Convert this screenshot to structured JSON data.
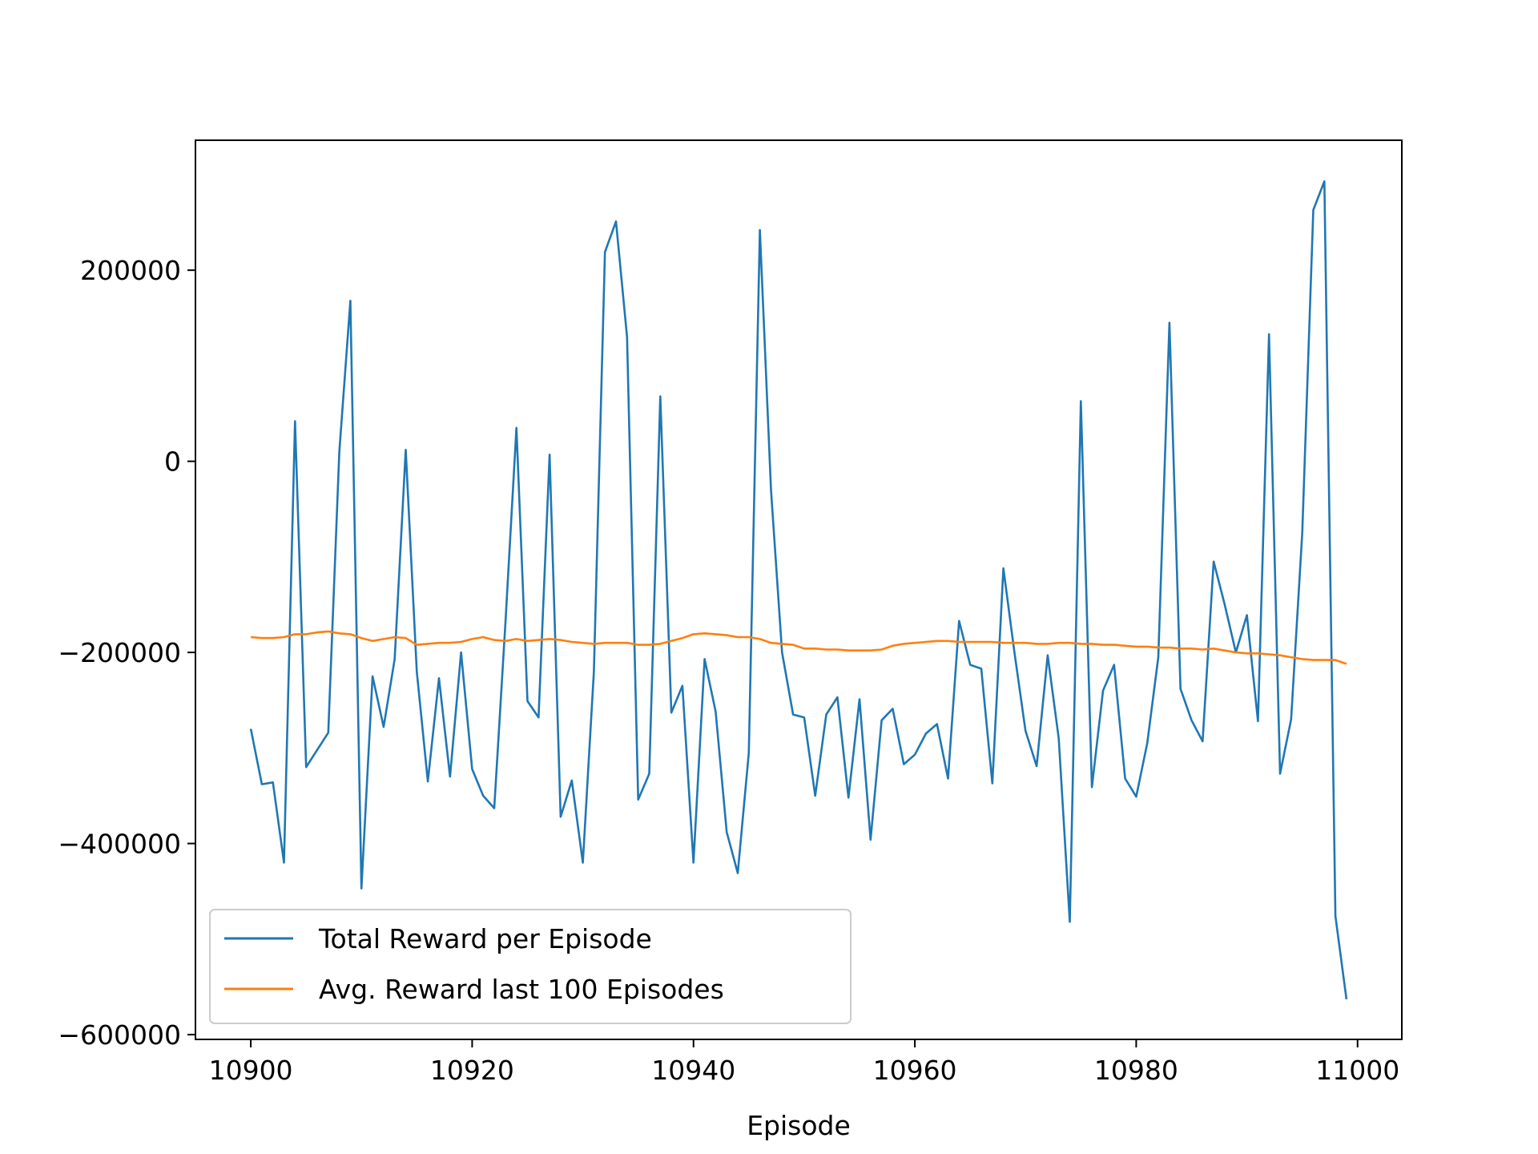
{
  "chart_data": {
    "type": "line",
    "title": "",
    "xlabel": "Episode",
    "ylabel": "",
    "xlim": [
      10895,
      11004
    ],
    "ylim": [
      -605000,
      336000
    ],
    "grid": false,
    "legend_position": "lower-left",
    "xticks": [
      10900,
      10920,
      10940,
      10960,
      10980,
      11000
    ],
    "yticks": [
      -600000,
      -400000,
      -200000,
      0,
      200000
    ],
    "x_start": 10900,
    "series": [
      {
        "name": "Total Reward per Episode",
        "color": "#1f77b4",
        "values": [
          -280000,
          -338000,
          -336000,
          -420000,
          42000,
          -320000,
          -302000,
          -284000,
          10000,
          168000,
          -447000,
          -225000,
          -278000,
          -207000,
          12000,
          -220000,
          -335000,
          -227000,
          -330000,
          -200000,
          -322000,
          -350000,
          -363000,
          -170000,
          35000,
          -251000,
          -268000,
          7000,
          -372000,
          -334000,
          -420000,
          -220000,
          219000,
          251000,
          130000,
          -354000,
          -327000,
          68000,
          -263000,
          -235000,
          -420000,
          -207000,
          -262000,
          -388000,
          -431000,
          -305000,
          242000,
          -30000,
          -200000,
          -265000,
          -268000,
          -350000,
          -265000,
          -247000,
          -352000,
          -249000,
          -396000,
          -271000,
          -259000,
          -317000,
          -307000,
          -285000,
          -275000,
          -332000,
          -167000,
          -213000,
          -217000,
          -337000,
          -112000,
          -200000,
          -282000,
          -319000,
          -203000,
          -290000,
          -482000,
          63000,
          -341000,
          -240000,
          -213000,
          -332000,
          -351000,
          -295000,
          -205000,
          145000,
          -238000,
          -271000,
          -293000,
          -105000,
          -150000,
          -200000,
          -161000,
          -272000,
          133000,
          -327000,
          -270000,
          -75000,
          263000,
          293000,
          -476000,
          -563000
        ]
      },
      {
        "name": "Avg. Reward last 100 Episodes",
        "color": "#ff7f0e",
        "values": [
          -184000,
          -185000,
          -185000,
          -184000,
          -181000,
          -181000,
          -179000,
          -178000,
          -180000,
          -181000,
          -185000,
          -188000,
          -186000,
          -184000,
          -185000,
          -192000,
          -191000,
          -190000,
          -190000,
          -189000,
          -186000,
          -184000,
          -187000,
          -188000,
          -186000,
          -188000,
          -187000,
          -186000,
          -187000,
          -189000,
          -190000,
          -191000,
          -190000,
          -190000,
          -190000,
          -192000,
          -192000,
          -191000,
          -188000,
          -185000,
          -181000,
          -180000,
          -181000,
          -182000,
          -184000,
          -184000,
          -186000,
          -190000,
          -191000,
          -192000,
          -196000,
          -196000,
          -197000,
          -197000,
          -198000,
          -198000,
          -198000,
          -197000,
          -193000,
          -191000,
          -190000,
          -189000,
          -188000,
          -188000,
          -189000,
          -189000,
          -189000,
          -189000,
          -190000,
          -190000,
          -190000,
          -191000,
          -191000,
          -190000,
          -190000,
          -191000,
          -191000,
          -192000,
          -192000,
          -193000,
          -194000,
          -194000,
          -195000,
          -195000,
          -196000,
          -196000,
          -197000,
          -196000,
          -198000,
          -200000,
          -201000,
          -201000,
          -202000,
          -203000,
          -205000,
          -207000,
          -208000,
          -208000,
          -208000,
          -212000
        ]
      }
    ]
  }
}
